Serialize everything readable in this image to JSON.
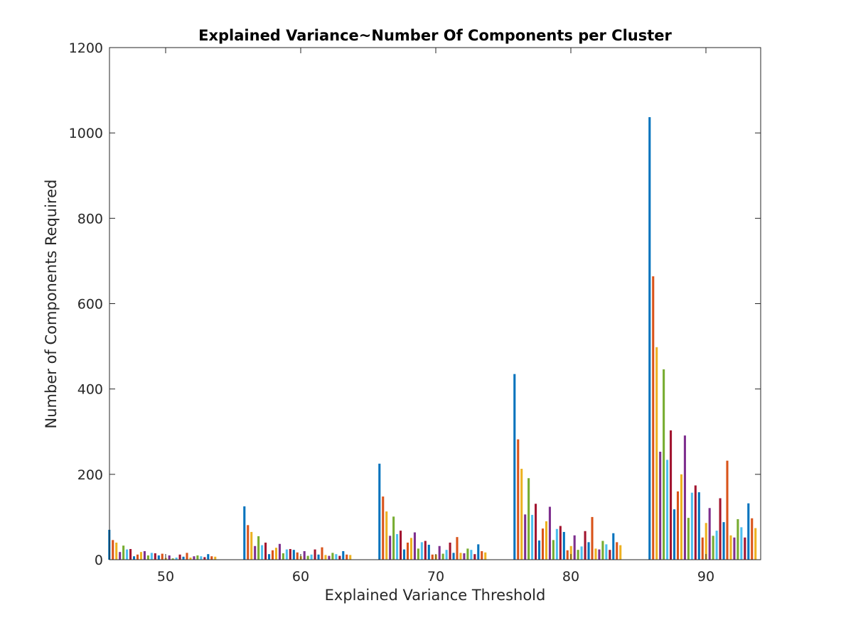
{
  "chart_data": {
    "type": "bar",
    "title": "Explained Variance~Number Of Components per Cluster",
    "xlabel": "Explained Variance Threshold",
    "ylabel": "Number of Components Required",
    "categories": [
      "50",
      "60",
      "70",
      "80",
      "90"
    ],
    "ylim": [
      0,
      1200
    ],
    "yticks": [
      0,
      200,
      400,
      600,
      800,
      1000,
      1200
    ],
    "grid": false,
    "legend": "none",
    "colors": [
      "#0072BD",
      "#D95319",
      "#EDB120",
      "#7E2F8E",
      "#77AC30",
      "#4DBEEE",
      "#A2142F"
    ],
    "groups": [
      {
        "category": "50",
        "values": [
          70,
          46,
          40,
          18,
          33,
          24,
          25,
          8,
          12,
          18,
          20,
          10,
          16,
          15,
          10,
          14,
          4,
          10,
          3,
          5,
          12,
          7,
          16,
          5,
          8,
          10,
          8,
          6,
          13,
          8,
          7
        ]
      },
      {
        "category": "60",
        "values": [
          125,
          81,
          65,
          32,
          55,
          34,
          40,
          13,
          22,
          28,
          37,
          15,
          24,
          25,
          23,
          17,
          8,
          20,
          9,
          12,
          24,
          12,
          29,
          11,
          9,
          16,
          13,
          9,
          20,
          12,
          11
        ]
      },
      {
        "category": "70",
        "values": [
          225,
          148,
          113,
          56,
          101,
          60,
          68,
          24,
          40,
          51,
          64,
          26,
          41,
          44,
          35,
          12,
          12,
          32,
          14,
          23,
          40,
          16,
          53,
          16,
          15,
          26,
          23,
          13,
          36,
          20,
          17
        ]
      },
      {
        "category": "80",
        "values": [
          435,
          282,
          213,
          106,
          191,
          105,
          131,
          45,
          73,
          90,
          124,
          46,
          72,
          79,
          65,
          22,
          32,
          57,
          23,
          31,
          67,
          41,
          100,
          26,
          24,
          44,
          36,
          23,
          62,
          41,
          34
        ]
      },
      {
        "category": "90",
        "values": [
          1037,
          664,
          498,
          253,
          446,
          234,
          303,
          118,
          160,
          200,
          291,
          98,
          157,
          174,
          158,
          52,
          86,
          121,
          56,
          68,
          144,
          88,
          232,
          57,
          52,
          95,
          76,
          52,
          132,
          97,
          74
        ]
      }
    ]
  }
}
